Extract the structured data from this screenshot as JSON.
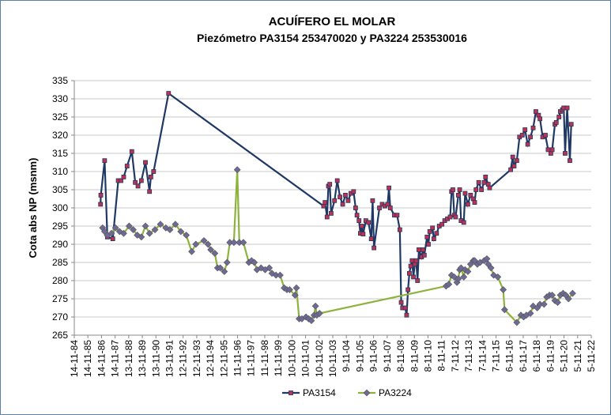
{
  "chart_data": {
    "type": "line",
    "title": "ACUÍFERO EL MOLAR",
    "subtitle": "Piezómetro PA3154 253470020 y PA3224 253530016",
    "y_label": "Cota abs NP (msnm)",
    "ylim": [
      265,
      335
    ],
    "yticks": [
      265,
      270,
      275,
      280,
      285,
      290,
      295,
      300,
      305,
      310,
      315,
      320,
      325,
      330,
      335
    ],
    "xlim": [
      1984.87,
      2022.87
    ],
    "xticks": [
      {
        "value": 1984.87,
        "label": "14-11-84"
      },
      {
        "value": 1985.87,
        "label": "14-11-85"
      },
      {
        "value": 1986.87,
        "label": "14-11-86"
      },
      {
        "value": 1987.87,
        "label": "14-11-87"
      },
      {
        "value": 1988.87,
        "label": "13-11-88"
      },
      {
        "value": 1989.87,
        "label": "13-11-89"
      },
      {
        "value": 1990.87,
        "label": "13-11-90"
      },
      {
        "value": 1991.87,
        "label": "13-11-91"
      },
      {
        "value": 1992.87,
        "label": "12-11-92"
      },
      {
        "value": 1993.87,
        "label": "12-11-93"
      },
      {
        "value": 1994.87,
        "label": "12-11-94"
      },
      {
        "value": 1995.87,
        "label": "12-11-95"
      },
      {
        "value": 1996.87,
        "label": "11-11-96"
      },
      {
        "value": 1997.87,
        "label": "11-11-97"
      },
      {
        "value": 1998.87,
        "label": "11-11-98"
      },
      {
        "value": 1999.87,
        "label": "11-11-99"
      },
      {
        "value": 2000.87,
        "label": "10-11-00"
      },
      {
        "value": 2001.87,
        "label": "10-11-01"
      },
      {
        "value": 2002.87,
        "label": "10-11-02"
      },
      {
        "value": 2003.87,
        "label": "10-11-03"
      },
      {
        "value": 2004.87,
        "label": "9-11-04"
      },
      {
        "value": 2005.87,
        "label": "9-11-05"
      },
      {
        "value": 2006.87,
        "label": "9-11-06"
      },
      {
        "value": 2007.87,
        "label": "9-11-07"
      },
      {
        "value": 2008.87,
        "label": "8-11-08"
      },
      {
        "value": 2009.87,
        "label": "8-11-09"
      },
      {
        "value": 2010.87,
        "label": "8-11-10"
      },
      {
        "value": 2011.87,
        "label": "8-11-11"
      },
      {
        "value": 2012.87,
        "label": "7-11-12"
      },
      {
        "value": 2013.87,
        "label": "7-11-13"
      },
      {
        "value": 2014.87,
        "label": "7-11-14"
      },
      {
        "value": 2015.87,
        "label": "7-11-15"
      },
      {
        "value": 2016.87,
        "label": "6-11-16"
      },
      {
        "value": 2017.87,
        "label": "6-11-17"
      },
      {
        "value": 2018.87,
        "label": "6-11-18"
      },
      {
        "value": 2019.87,
        "label": "6-11-19"
      },
      {
        "value": 2020.87,
        "label": "5-11-20"
      },
      {
        "value": 2021.87,
        "label": "5-11-21"
      },
      {
        "value": 2022.87,
        "label": "5-11-22"
      }
    ],
    "grid": true,
    "legend": "bottom",
    "series": [
      {
        "name": "PA3154",
        "color": "#1f3864",
        "marker": "square",
        "marker_color": "#c0314f",
        "x": [
          1986.8,
          1986.82,
          1987.1,
          1987.3,
          1987.7,
          1988.1,
          1988.3,
          1988.5,
          1988.75,
          1989.1,
          1989.35,
          1989.55,
          1989.8,
          1990.1,
          1990.4,
          1990.5,
          1990.7,
          1991.8,
          2003.2,
          2003.3,
          2003.45,
          2003.55,
          2003.65,
          2003.75,
          2004.0,
          2004.2,
          2004.4,
          2004.6,
          2004.8,
          2005.0,
          2005.2,
          2005.4,
          2005.55,
          2005.65,
          2005.8,
          2005.9,
          2006.0,
          2006.1,
          2006.3,
          2006.5,
          2006.7,
          2006.8,
          2006.9,
          2007.3,
          2007.5,
          2007.7,
          2007.9,
          2008.0,
          2008.1,
          2008.4,
          2008.6,
          2008.8,
          2008.9,
          2009.0,
          2009.2,
          2009.3,
          2009.4,
          2009.5,
          2009.6,
          2009.7,
          2009.8,
          2009.9,
          2010.0,
          2010.1,
          2010.2,
          2010.4,
          2010.5,
          2010.6,
          2010.8,
          2010.9,
          2011.0,
          2011.2,
          2011.3,
          2011.5,
          2011.7,
          2011.9,
          2012.1,
          2012.3,
          2012.5,
          2012.6,
          2012.7,
          2012.8,
          2012.9,
          2013.1,
          2013.2,
          2013.3,
          2013.5,
          2013.6,
          2013.8,
          2014.0,
          2014.2,
          2014.3,
          2014.4,
          2014.6,
          2014.8,
          2015.0,
          2015.1,
          2015.3,
          2015.4,
          2016.95,
          2017.1,
          2017.2,
          2017.4,
          2017.6,
          2017.8,
          2018.0,
          2018.2,
          2018.4,
          2018.6,
          2018.8,
          2019.0,
          2019.1,
          2019.3,
          2019.5,
          2019.7,
          2019.9,
          2020.0,
          2020.2,
          2020.3,
          2020.5,
          2020.6,
          2020.75,
          2020.85,
          2020.95,
          2021.1,
          2021.3,
          2021.4
        ],
        "values": [
          301,
          303.5,
          313,
          292,
          291.5,
          307.5,
          307.5,
          308.5,
          311.5,
          315.5,
          307,
          306,
          307.5,
          312.5,
          304.5,
          308.5,
          310,
          331.5,
          300.5,
          301.5,
          297.5,
          306,
          306.5,
          298.5,
          302,
          307.5,
          303,
          301,
          303.5,
          302,
          304,
          304.5,
          300,
          298,
          296.5,
          293,
          295,
          292.8,
          296.5,
          296,
          291.5,
          302,
          289,
          300,
          301,
          300.5,
          301,
          305.5,
          300,
          298,
          298,
          294,
          274,
          272.5,
          272.5,
          270.5,
          277.5,
          282,
          284,
          285.5,
          281,
          284.5,
          285.5,
          280,
          288.5,
          286.5,
          288.5,
          287,
          292,
          290,
          293.5,
          294.5,
          291.5,
          293,
          295,
          295.5,
          296.5,
          297,
          297.5,
          304.5,
          305,
          298,
          297.5,
          303.5,
          305,
          296.5,
          296,
          304,
          301,
          303.5,
          302.5,
          301.5,
          305,
          307,
          305,
          307,
          308.5,
          306.5,
          305.5,
          310.5,
          314,
          311.5,
          313,
          319.5,
          320,
          321.5,
          317.5,
          319.5,
          322,
          326.5,
          325.5,
          324.5,
          319.5,
          320,
          316,
          315,
          316,
          323,
          323.5,
          325,
          326.5,
          327,
          327.5,
          315,
          327.5,
          313,
          323
        ]
      },
      {
        "name": "PA3224",
        "color": "#8db33d",
        "marker": "diamond",
        "marker_color": "#6e6a96",
        "x": [
          1986.95,
          1987.1,
          1987.3,
          1987.6,
          1987.9,
          1988.2,
          1988.5,
          1988.9,
          1989.2,
          1989.5,
          1989.8,
          1990.1,
          1990.4,
          1990.8,
          1991.2,
          1991.6,
          1991.9,
          1992.3,
          1992.7,
          1993.1,
          1993.5,
          1993.8,
          1994.4,
          1994.7,
          1994.9,
          1995.2,
          1995.4,
          1995.6,
          1995.9,
          1996.1,
          1996.3,
          1996.6,
          1996.85,
          1997.0,
          1997.3,
          1997.7,
          1997.9,
          1998.1,
          1998.3,
          1998.6,
          1998.9,
          1999.2,
          1999.4,
          1999.7,
          2000.0,
          2000.3,
          2000.5,
          2000.7,
          2001.1,
          2001.2,
          2001.4,
          2001.6,
          2001.9,
          2002.1,
          2002.3,
          2002.5,
          2002.6,
          2002.7,
          2002.9,
          2012.2,
          2012.4,
          2012.6,
          2012.8,
          2013.0,
          2013.1,
          2013.2,
          2013.3,
          2013.5,
          2013.6,
          2013.8,
          2014.0,
          2014.2,
          2014.3,
          2014.5,
          2014.7,
          2015.0,
          2015.2,
          2015.3,
          2015.5,
          2015.7,
          2016.0,
          2016.4,
          2016.5,
          2017.4,
          2017.7,
          2017.9,
          2018.1,
          2018.4,
          2018.6,
          2018.9,
          2019.1,
          2019.4,
          2019.6,
          2019.8,
          2020.0,
          2020.2,
          2020.4,
          2020.6,
          2020.8,
          2021.0,
          2021.2,
          2021.5
        ],
        "values": [
          294.5,
          293.5,
          292.5,
          293,
          294.5,
          293.5,
          293,
          295,
          294,
          292.5,
          292,
          295,
          293,
          294,
          295.5,
          294.5,
          294,
          295.5,
          293.5,
          292.5,
          288,
          290,
          291,
          290,
          288.5,
          287.5,
          283.5,
          283.5,
          282.5,
          285,
          290.5,
          290.5,
          310.5,
          290.5,
          290.5,
          285,
          285.5,
          285,
          283,
          283.5,
          283,
          283.5,
          282,
          281.5,
          281.5,
          278,
          277.5,
          277.5,
          276,
          278,
          269.5,
          269.5,
          270,
          269.5,
          269,
          270.5,
          273,
          270.5,
          271,
          278.5,
          279,
          281.5,
          281,
          279.5,
          280.5,
          283,
          283.5,
          281,
          283,
          282.5,
          284.5,
          285.5,
          285.5,
          284.5,
          285,
          285.5,
          286,
          284.5,
          283.5,
          281.5,
          281,
          277.5,
          272,
          268.5,
          270.5,
          270,
          270.5,
          271,
          273,
          272.5,
          273.5,
          273.5,
          275.5,
          276,
          276,
          274.5,
          274,
          276,
          276.5,
          276,
          275,
          276.5
        ]
      }
    ]
  }
}
